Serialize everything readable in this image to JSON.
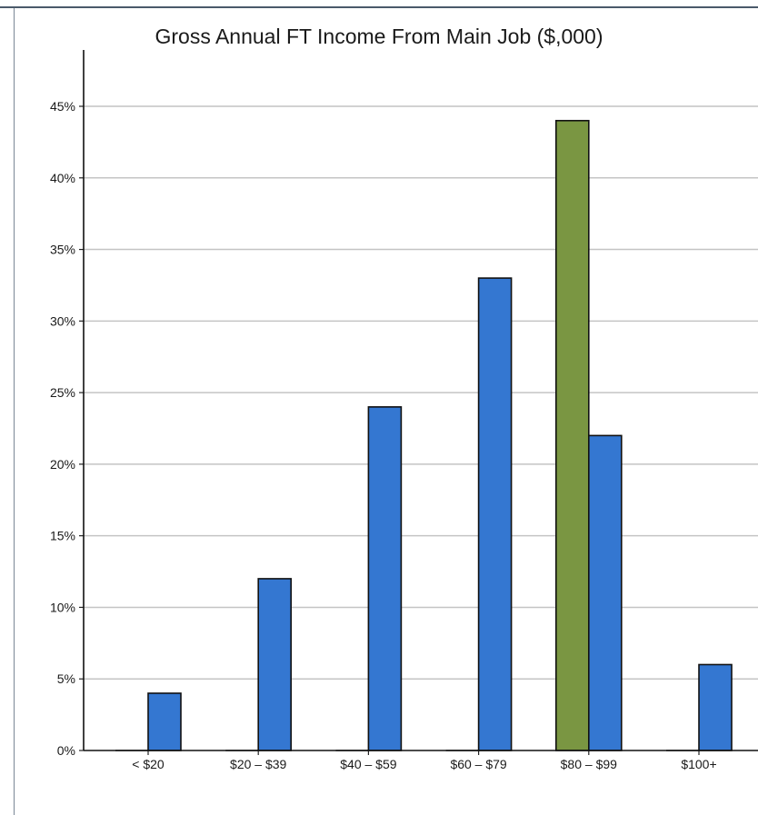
{
  "chart_data": {
    "type": "bar",
    "title": "Gross Annual FT Income From Main Job ($,000)",
    "categories": [
      "< $20",
      "$20 – $39",
      "$40 – $59",
      "$60 – $79",
      "$80 – $99",
      "$100+"
    ],
    "series": [
      {
        "values": [
          0,
          0,
          0,
          0,
          44,
          0
        ],
        "color": "#7a9642"
      },
      {
        "values": [
          4,
          12,
          24,
          33,
          22,
          6
        ],
        "color": "#3477d1"
      }
    ],
    "ylim": [
      0,
      45
    ],
    "yticks": [
      0,
      5,
      10,
      15,
      20,
      25,
      30,
      35,
      40,
      45
    ],
    "ytick_format": "{v}%",
    "grid": true,
    "xlabel": "",
    "ylabel": ""
  }
}
